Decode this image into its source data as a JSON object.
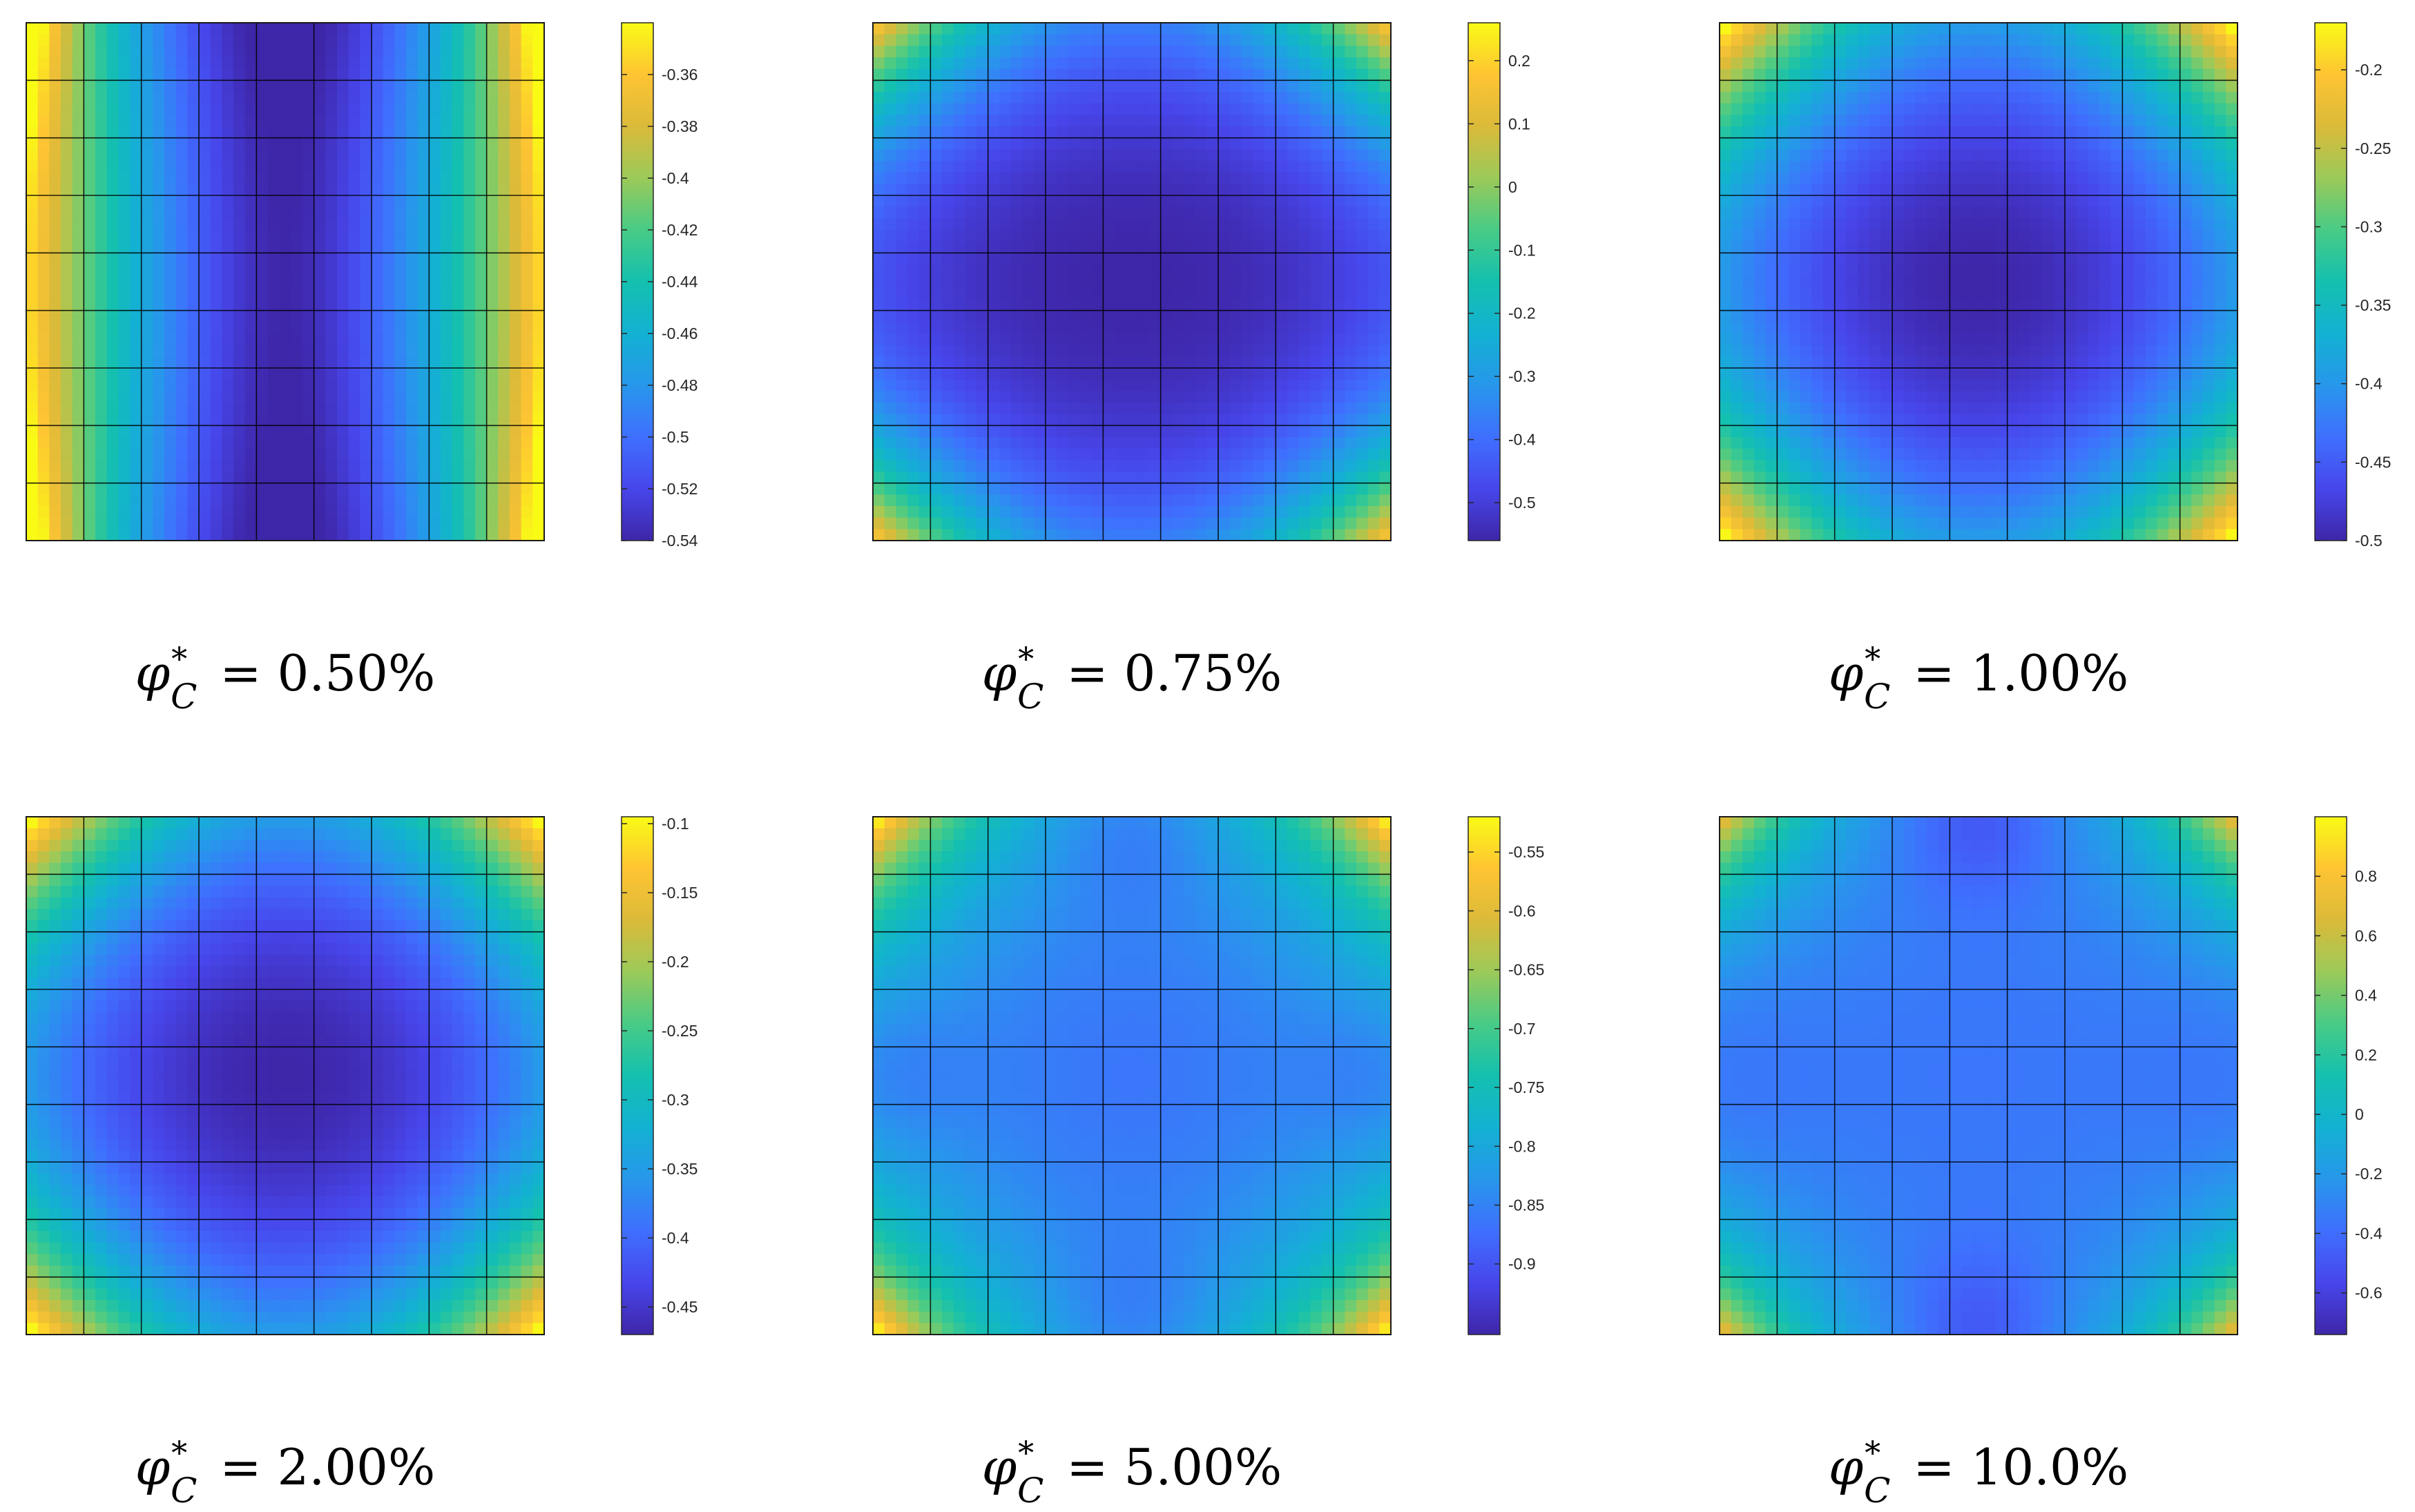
{
  "figure": {
    "layout": {
      "rows": 2,
      "cols": 3
    },
    "colormap": [
      "#3e26a8",
      "#4746eb",
      "#3f6ffe",
      "#2797eb",
      "#13b1d2",
      "#14c0af",
      "#48cb86",
      "#9bca59",
      "#dbba39",
      "#fec433",
      "#f9fb15"
    ]
  },
  "chart_data": [
    {
      "type": "heatmap",
      "caption": {
        "var": "φ",
        "sup": "*",
        "sub": "C",
        "value": "0.50%"
      },
      "pattern": "columns",
      "grid_cells": 9,
      "colorbar": {
        "min": -0.54,
        "max": -0.34,
        "ticks": [
          "-0.36",
          "-0.38",
          "-0.4",
          "-0.42",
          "-0.44",
          "-0.46",
          "-0.48",
          "-0.5",
          "-0.52",
          "-0.54"
        ]
      }
    },
    {
      "type": "heatmap",
      "caption": {
        "var": "φ",
        "sup": "*",
        "sub": "C",
        "value": "0.75%"
      },
      "pattern": "bowl_oval",
      "grid_cells": 9,
      "colorbar": {
        "min": -0.56,
        "max": 0.26,
        "ticks": [
          "0.2",
          "0.1",
          "0",
          "-0.1",
          "-0.2",
          "-0.3",
          "-0.4",
          "-0.5"
        ]
      }
    },
    {
      "type": "heatmap",
      "caption": {
        "var": "φ",
        "sup": "*",
        "sub": "C",
        "value": "1.00%"
      },
      "pattern": "bowl",
      "grid_cells": 9,
      "colorbar": {
        "min": -0.5,
        "max": -0.17,
        "ticks": [
          "-0.2",
          "-0.25",
          "-0.3",
          "-0.35",
          "-0.4",
          "-0.45",
          "-0.5"
        ]
      }
    },
    {
      "type": "heatmap",
      "caption": {
        "var": "φ",
        "sup": "*",
        "sub": "C",
        "value": "2.00%"
      },
      "pattern": "bowl",
      "grid_cells": 9,
      "colorbar": {
        "min": -0.47,
        "max": -0.095,
        "ticks": [
          "-0.1",
          "-0.15",
          "-0.2",
          "-0.25",
          "-0.3",
          "-0.35",
          "-0.4",
          "-0.45"
        ]
      }
    },
    {
      "type": "heatmap",
      "caption": {
        "var": "φ",
        "sup": "*",
        "sub": "C",
        "value": "5.00%"
      },
      "pattern": "saddle",
      "grid_cells": 9,
      "colorbar": {
        "min": -0.96,
        "max": -0.52,
        "ticks": [
          "-0.55",
          "-0.6",
          "-0.65",
          "-0.7",
          "-0.75",
          "-0.8",
          "-0.85",
          "-0.9"
        ]
      }
    },
    {
      "type": "heatmap",
      "caption": {
        "var": "φ",
        "sup": "*",
        "sub": "C",
        "value": "10.0%"
      },
      "pattern": "saddle_strong",
      "grid_cells": 9,
      "colorbar": {
        "min": -0.74,
        "max": 1.0,
        "ticks": [
          "0.8",
          "0.6",
          "0.4",
          "0.2",
          "0",
          "-0.2",
          "-0.4",
          "-0.6"
        ]
      }
    }
  ]
}
